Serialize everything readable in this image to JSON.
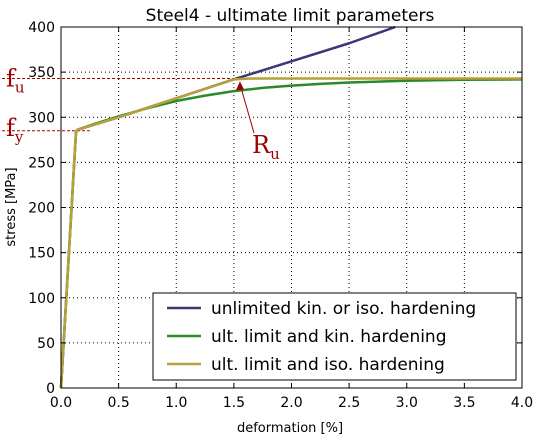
{
  "chart_data": {
    "type": "line",
    "title": "Steel4 - ultimate limit parameters",
    "xlabel": "deformation [%]",
    "ylabel": "stress [MPa]",
    "xlim": [
      0.0,
      4.0
    ],
    "ylim": [
      0,
      400
    ],
    "xticks": [
      "0.0",
      "0.5",
      "1.0",
      "1.5",
      "2.0",
      "2.5",
      "3.0",
      "3.5",
      "4.0"
    ],
    "yticks": [
      "0",
      "50",
      "100",
      "150",
      "200",
      "250",
      "300",
      "350",
      "400"
    ],
    "grid": true,
    "legend_position": "bottom-right",
    "series": [
      {
        "name": "unlimited kin. or iso. hardening",
        "color": "#3b3878",
        "x": [
          0.0,
          0.13,
          0.14,
          0.5,
          1.0,
          1.5,
          2.0,
          2.5,
          2.9
        ],
        "y": [
          0,
          283,
          286,
          300,
          321,
          342,
          362,
          382,
          400
        ]
      },
      {
        "name": "ult. limit and kin. hardening",
        "color": "#2a8a2a",
        "x": [
          0.0,
          0.13,
          0.14,
          0.3,
          0.5,
          0.75,
          1.0,
          1.25,
          1.5,
          1.75,
          2.0,
          2.25,
          2.5,
          3.0,
          3.5,
          4.0
        ],
        "y": [
          0,
          283,
          286,
          293,
          301,
          310,
          318,
          324,
          329,
          332.5,
          335,
          337,
          338.5,
          340.5,
          341.5,
          342
        ]
      },
      {
        "name": "ult. limit and iso. hardening",
        "color": "#b5a03c",
        "x": [
          0.0,
          0.13,
          0.14,
          0.5,
          1.0,
          1.5,
          1.65,
          2.0,
          3.0,
          4.0
        ],
        "y": [
          0,
          283,
          286,
          300,
          321,
          342,
          343,
          343,
          343,
          343
        ]
      }
    ],
    "annotations": {
      "fu": {
        "base": "f",
        "sub": "u",
        "value": 343
      },
      "fy": {
        "base": "f",
        "sub": "y",
        "value": 285
      },
      "Ru": {
        "base": "R",
        "sub": "u",
        "point": [
          1.57,
          342
        ]
      },
      "color": "#a00000"
    }
  }
}
